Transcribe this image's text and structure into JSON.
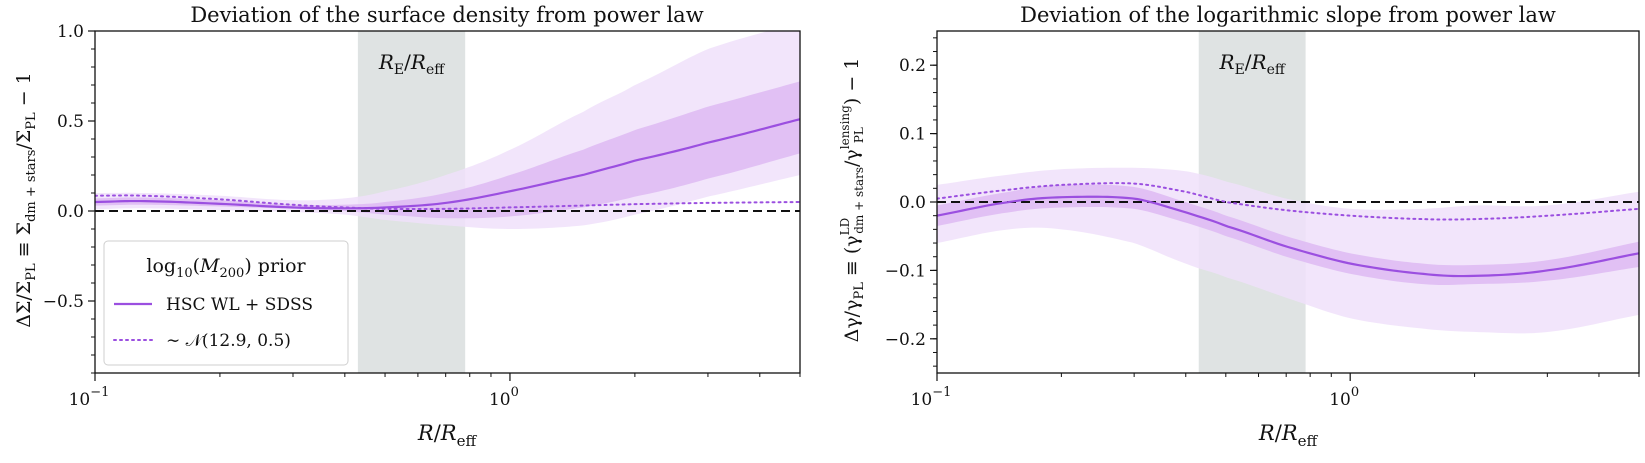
{
  "chart_data": [
    {
      "type": "line",
      "title": "Deviation of the surface density from power law",
      "xlabel": "R/R_eff",
      "ylabel": "ΔΣ/Σ_PL ≡ Σ_dm + stars/Σ_PL − 1",
      "xscale": "log",
      "xlim": [
        0.1,
        5.0
      ],
      "ylim": [
        -0.9,
        1.0
      ],
      "x_ticks": [
        {
          "value": 0.1,
          "label": "10^-1"
        },
        {
          "value": 1.0,
          "label": "10^0"
        }
      ],
      "y_ticks": [
        {
          "value": -0.5,
          "label": "−0.5"
        },
        {
          "value": 0.0,
          "label": "0.0"
        },
        {
          "value": 0.5,
          "label": "0.5"
        },
        {
          "value": 1.0,
          "label": "1.0"
        }
      ],
      "reference_line": 0.0,
      "shaded_band": {
        "x": [
          0.43,
          0.78
        ],
        "label": "R_E/R_eff"
      },
      "x": [
        0.1,
        0.13,
        0.2,
        0.3,
        0.4,
        0.5,
        0.7,
        1.0,
        1.5,
        2.0,
        3.0,
        5.0
      ],
      "series": [
        {
          "name": "HSC WL + SDSS",
          "style": "solid",
          "values": [
            0.05,
            0.055,
            0.04,
            0.02,
            0.015,
            0.02,
            0.045,
            0.11,
            0.2,
            0.28,
            0.38,
            0.51
          ],
          "band68_lower": [
            0.03,
            0.035,
            0.025,
            0.012,
            0.0,
            -0.02,
            -0.04,
            -0.03,
            0.02,
            0.08,
            0.18,
            0.32
          ],
          "band68_upper": [
            0.07,
            0.075,
            0.06,
            0.035,
            0.035,
            0.05,
            0.1,
            0.2,
            0.34,
            0.45,
            0.58,
            0.72
          ],
          "band95_lower": [
            0.01,
            0.015,
            0.005,
            -0.005,
            -0.02,
            -0.05,
            -0.08,
            -0.1,
            -0.08,
            -0.02,
            0.08,
            0.2
          ],
          "band95_upper": [
            0.1,
            0.1,
            0.085,
            0.06,
            0.07,
            0.11,
            0.2,
            0.34,
            0.55,
            0.7,
            0.9,
            1.05
          ]
        },
        {
          "name": "∼ 𝒩(12.9, 0.5)",
          "style": "dotted",
          "values": [
            0.085,
            0.085,
            0.065,
            0.035,
            0.02,
            0.012,
            0.012,
            0.02,
            0.03,
            0.038,
            0.045,
            0.05
          ]
        }
      ],
      "legend": {
        "title": "log10(M200) prior",
        "placement": "lower-left"
      }
    },
    {
      "type": "line",
      "title": "Deviation of the logarithmic slope from power law",
      "xlabel": "R/R_eff",
      "ylabel": "Δγ/γ_PL ≡ (γ^LD_dm + stars / γ^lensing_PL) − 1",
      "xscale": "log",
      "xlim": [
        0.1,
        5.0
      ],
      "ylim": [
        -0.25,
        0.25
      ],
      "x_ticks": [
        {
          "value": 0.1,
          "label": "10^-1"
        },
        {
          "value": 1.0,
          "label": "10^0"
        }
      ],
      "y_ticks": [
        {
          "value": -0.2,
          "label": "−0.2"
        },
        {
          "value": -0.1,
          "label": "−0.1"
        },
        {
          "value": 0.0,
          "label": "0.0"
        },
        {
          "value": 0.1,
          "label": "0.1"
        },
        {
          "value": 0.2,
          "label": "0.2"
        }
      ],
      "reference_line": 0.0,
      "shaded_band": {
        "x": [
          0.43,
          0.78
        ],
        "label": "R_E/R_eff"
      },
      "x": [
        0.1,
        0.15,
        0.2,
        0.3,
        0.4,
        0.5,
        0.7,
        1.0,
        1.5,
        2.0,
        3.0,
        5.0
      ],
      "series": [
        {
          "name": "HSC WL + SDSS",
          "style": "solid",
          "values": [
            -0.02,
            0.0,
            0.007,
            0.005,
            -0.015,
            -0.035,
            -0.065,
            -0.09,
            -0.105,
            -0.108,
            -0.1,
            -0.075
          ],
          "band68_lower": [
            -0.035,
            -0.015,
            -0.008,
            -0.01,
            -0.03,
            -0.05,
            -0.08,
            -0.105,
            -0.12,
            -0.12,
            -0.115,
            -0.095
          ],
          "band68_upper": [
            -0.005,
            0.015,
            0.025,
            0.022,
            0.0,
            -0.02,
            -0.05,
            -0.075,
            -0.09,
            -0.092,
            -0.085,
            -0.058
          ],
          "band95_lower": [
            -0.06,
            -0.04,
            -0.04,
            -0.06,
            -0.09,
            -0.11,
            -0.14,
            -0.17,
            -0.185,
            -0.19,
            -0.19,
            -0.165
          ],
          "band95_upper": [
            0.025,
            0.04,
            0.048,
            0.05,
            0.045,
            0.03,
            0.005,
            -0.01,
            -0.01,
            -0.005,
            -0.005,
            0.015
          ]
        },
        {
          "name": "∼ 𝒩(12.9, 0.5)",
          "style": "dotted",
          "values": [
            0.005,
            0.018,
            0.025,
            0.027,
            0.015,
            0.0,
            -0.012,
            -0.02,
            -0.025,
            -0.025,
            -0.02,
            -0.01
          ]
        }
      ]
    }
  ],
  "colors": {
    "line": "#9b4fe0",
    "band68": "#dcb7f2",
    "band95": "#f0e0fa",
    "re_band": "#b9c2c2",
    "reference": "#111111"
  }
}
